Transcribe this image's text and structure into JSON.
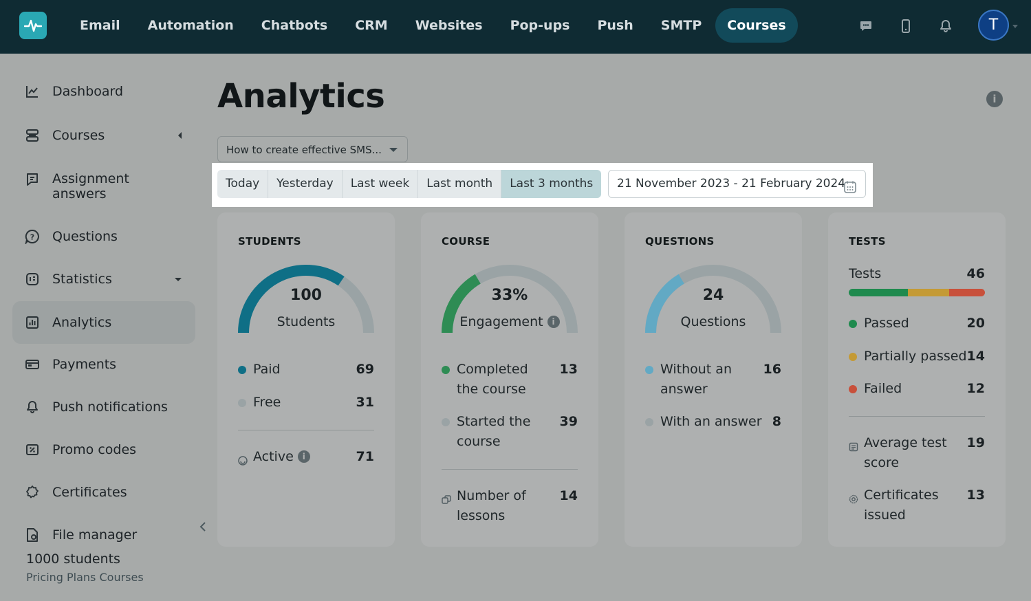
{
  "topnav": {
    "items": [
      "Email",
      "Automation",
      "Chatbots",
      "CRM",
      "Websites",
      "Pop-ups",
      "Push",
      "SMTP",
      "Courses"
    ],
    "active": "Courses",
    "avatar_initial": "T"
  },
  "sidebar": {
    "items": [
      {
        "label": "Dashboard",
        "icon": "chart-line-icon"
      },
      {
        "label": "Courses",
        "icon": "layers-icon"
      },
      {
        "label": "Assignment answers",
        "icon": "assignment-icon"
      },
      {
        "label": "Questions",
        "icon": "question-icon"
      },
      {
        "label": "Statistics",
        "icon": "statistics-icon"
      },
      {
        "label": "Analytics",
        "icon": "analytics-icon"
      },
      {
        "label": "Payments",
        "icon": "payments-icon"
      },
      {
        "label": "Push notifications",
        "icon": "bell-icon"
      },
      {
        "label": "Promo codes",
        "icon": "promo-icon"
      },
      {
        "label": "Certificates",
        "icon": "certificate-icon"
      },
      {
        "label": "File manager",
        "icon": "file-manager-icon"
      }
    ],
    "active": "Analytics",
    "plan_title": "1000 students",
    "plan_link": "Pricing Plans Courses"
  },
  "main": {
    "title": "Analytics",
    "course_select": "How to create effective SMS...",
    "periods": [
      "Today",
      "Yesterday",
      "Last week",
      "Last month",
      "Last 3 months"
    ],
    "active_period": "Last 3 months",
    "date_range": "21 November 2023 - 21 February 2024"
  },
  "cards": {
    "students": {
      "title": "STUDENTS",
      "gauge_value": "100",
      "gauge_label": "Students",
      "gauge_fraction": 0.69,
      "paid_label": "Paid",
      "paid_value": "69",
      "free_label": "Free",
      "free_value": "31",
      "active_label": "Active",
      "active_value": "71"
    },
    "course": {
      "title": "COURSE",
      "gauge_value": "33%",
      "gauge_label": "Engagement",
      "gauge_fraction": 0.33,
      "completed_label": "Completed the course",
      "completed_value": "13",
      "started_label": "Started the course",
      "started_value": "39",
      "lessons_label": "Number of lessons",
      "lessons_value": "14"
    },
    "questions": {
      "title": "QUESTIONS",
      "gauge_value": "24",
      "gauge_label": "Questions",
      "gauge_fraction": 0.33,
      "without_label": "Without an answer",
      "without_value": "16",
      "with_label": "With an answer",
      "with_value": "8"
    },
    "tests": {
      "title": "TESTS",
      "tests_label": "Tests",
      "tests_value": "46",
      "passed_label": "Passed",
      "passed_value": "20",
      "partial_label": "Partially passed",
      "partial_value": "14",
      "failed_label": "Failed",
      "failed_value": "12",
      "avg_label": "Average test score",
      "avg_value": "19",
      "cert_label": "Certificates issued",
      "cert_value": "13"
    }
  },
  "colors": {
    "students_fill": "#0f6f86",
    "course_fill": "#2e8c54",
    "questions_fill": "#62a9c4",
    "gauge_track": "#9aa3a5",
    "passed": "#1f8a4e",
    "partial": "#c49a35",
    "failed": "#c8503b"
  }
}
